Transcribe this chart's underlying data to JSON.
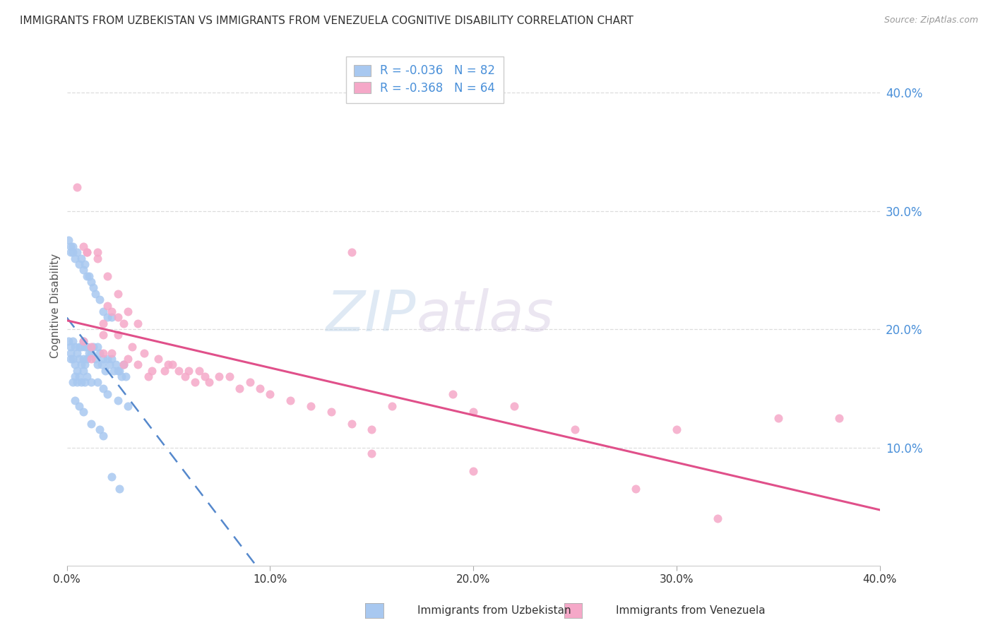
{
  "title": "IMMIGRANTS FROM UZBEKISTAN VS IMMIGRANTS FROM VENEZUELA COGNITIVE DISABILITY CORRELATION CHART",
  "source": "Source: ZipAtlas.com",
  "ylabel": "Cognitive Disability",
  "watermark_zip": "ZIP",
  "watermark_atlas": "atlas",
  "legend_uz_R": -0.036,
  "legend_uz_N": 82,
  "legend_ven_R": -0.368,
  "legend_ven_N": 64,
  "uzbekistan_scatter_color": "#a8c8f0",
  "venezuela_scatter_color": "#f5a8c8",
  "uzbekistan_line_color": "#5588cc",
  "venezuela_line_color": "#e0508a",
  "right_tick_color": "#4a90d9",
  "grid_color": "#dddddd",
  "bg_color": "#ffffff",
  "xlim": [
    0.0,
    0.4
  ],
  "ylim": [
    0.0,
    0.44
  ],
  "uzbekistan_x": [
    0.001,
    0.002,
    0.002,
    0.002,
    0.003,
    0.003,
    0.004,
    0.004,
    0.005,
    0.005,
    0.006,
    0.006,
    0.007,
    0.007,
    0.008,
    0.008,
    0.009,
    0.009,
    0.01,
    0.01,
    0.011,
    0.012,
    0.013,
    0.014,
    0.015,
    0.015,
    0.016,
    0.017,
    0.018,
    0.019,
    0.02,
    0.021,
    0.022,
    0.023,
    0.024,
    0.025,
    0.026,
    0.027,
    0.028,
    0.029,
    0.001,
    0.002,
    0.002,
    0.003,
    0.003,
    0.004,
    0.005,
    0.006,
    0.007,
    0.008,
    0.009,
    0.01,
    0.011,
    0.012,
    0.013,
    0.014,
    0.016,
    0.018,
    0.02,
    0.022,
    0.003,
    0.004,
    0.005,
    0.006,
    0.007,
    0.008,
    0.009,
    0.01,
    0.012,
    0.015,
    0.018,
    0.02,
    0.025,
    0.03,
    0.004,
    0.006,
    0.008,
    0.012,
    0.016,
    0.018,
    0.022,
    0.026
  ],
  "uzbekistan_y": [
    0.19,
    0.185,
    0.18,
    0.175,
    0.19,
    0.175,
    0.185,
    0.17,
    0.18,
    0.165,
    0.185,
    0.175,
    0.185,
    0.17,
    0.19,
    0.175,
    0.185,
    0.17,
    0.185,
    0.175,
    0.18,
    0.18,
    0.185,
    0.175,
    0.185,
    0.17,
    0.18,
    0.17,
    0.175,
    0.165,
    0.175,
    0.17,
    0.175,
    0.165,
    0.17,
    0.165,
    0.165,
    0.16,
    0.17,
    0.16,
    0.275,
    0.27,
    0.265,
    0.27,
    0.265,
    0.26,
    0.265,
    0.255,
    0.26,
    0.25,
    0.255,
    0.245,
    0.245,
    0.24,
    0.235,
    0.23,
    0.225,
    0.215,
    0.21,
    0.21,
    0.155,
    0.16,
    0.155,
    0.16,
    0.155,
    0.165,
    0.155,
    0.16,
    0.155,
    0.155,
    0.15,
    0.145,
    0.14,
    0.135,
    0.14,
    0.135,
    0.13,
    0.12,
    0.115,
    0.11,
    0.075,
    0.065
  ],
  "venezuela_x": [
    0.005,
    0.008,
    0.01,
    0.012,
    0.015,
    0.018,
    0.018,
    0.02,
    0.022,
    0.025,
    0.025,
    0.028,
    0.03,
    0.032,
    0.035,
    0.038,
    0.04,
    0.042,
    0.045,
    0.048,
    0.05,
    0.052,
    0.055,
    0.058,
    0.06,
    0.063,
    0.065,
    0.068,
    0.07,
    0.075,
    0.08,
    0.085,
    0.09,
    0.095,
    0.1,
    0.11,
    0.12,
    0.13,
    0.14,
    0.15,
    0.01,
    0.015,
    0.02,
    0.025,
    0.03,
    0.035,
    0.14,
    0.16,
    0.19,
    0.2,
    0.22,
    0.25,
    0.3,
    0.35,
    0.38,
    0.008,
    0.012,
    0.018,
    0.022,
    0.028,
    0.32,
    0.28,
    0.2,
    0.15
  ],
  "venezuela_y": [
    0.32,
    0.27,
    0.265,
    0.185,
    0.265,
    0.205,
    0.195,
    0.22,
    0.215,
    0.21,
    0.195,
    0.205,
    0.175,
    0.185,
    0.17,
    0.18,
    0.16,
    0.165,
    0.175,
    0.165,
    0.17,
    0.17,
    0.165,
    0.16,
    0.165,
    0.155,
    0.165,
    0.16,
    0.155,
    0.16,
    0.16,
    0.15,
    0.155,
    0.15,
    0.145,
    0.14,
    0.135,
    0.13,
    0.12,
    0.115,
    0.265,
    0.26,
    0.245,
    0.23,
    0.215,
    0.205,
    0.265,
    0.135,
    0.145,
    0.13,
    0.135,
    0.115,
    0.115,
    0.125,
    0.125,
    0.19,
    0.175,
    0.18,
    0.18,
    0.17,
    0.04,
    0.065,
    0.08,
    0.095
  ],
  "xtick_positions": [
    0.0,
    0.1,
    0.2,
    0.3,
    0.4
  ],
  "ytick_right_positions": [
    0.1,
    0.2,
    0.3,
    0.4
  ],
  "ytick_right_labels": [
    "10.0%",
    "20.0%",
    "30.0%",
    "40.0%"
  ]
}
